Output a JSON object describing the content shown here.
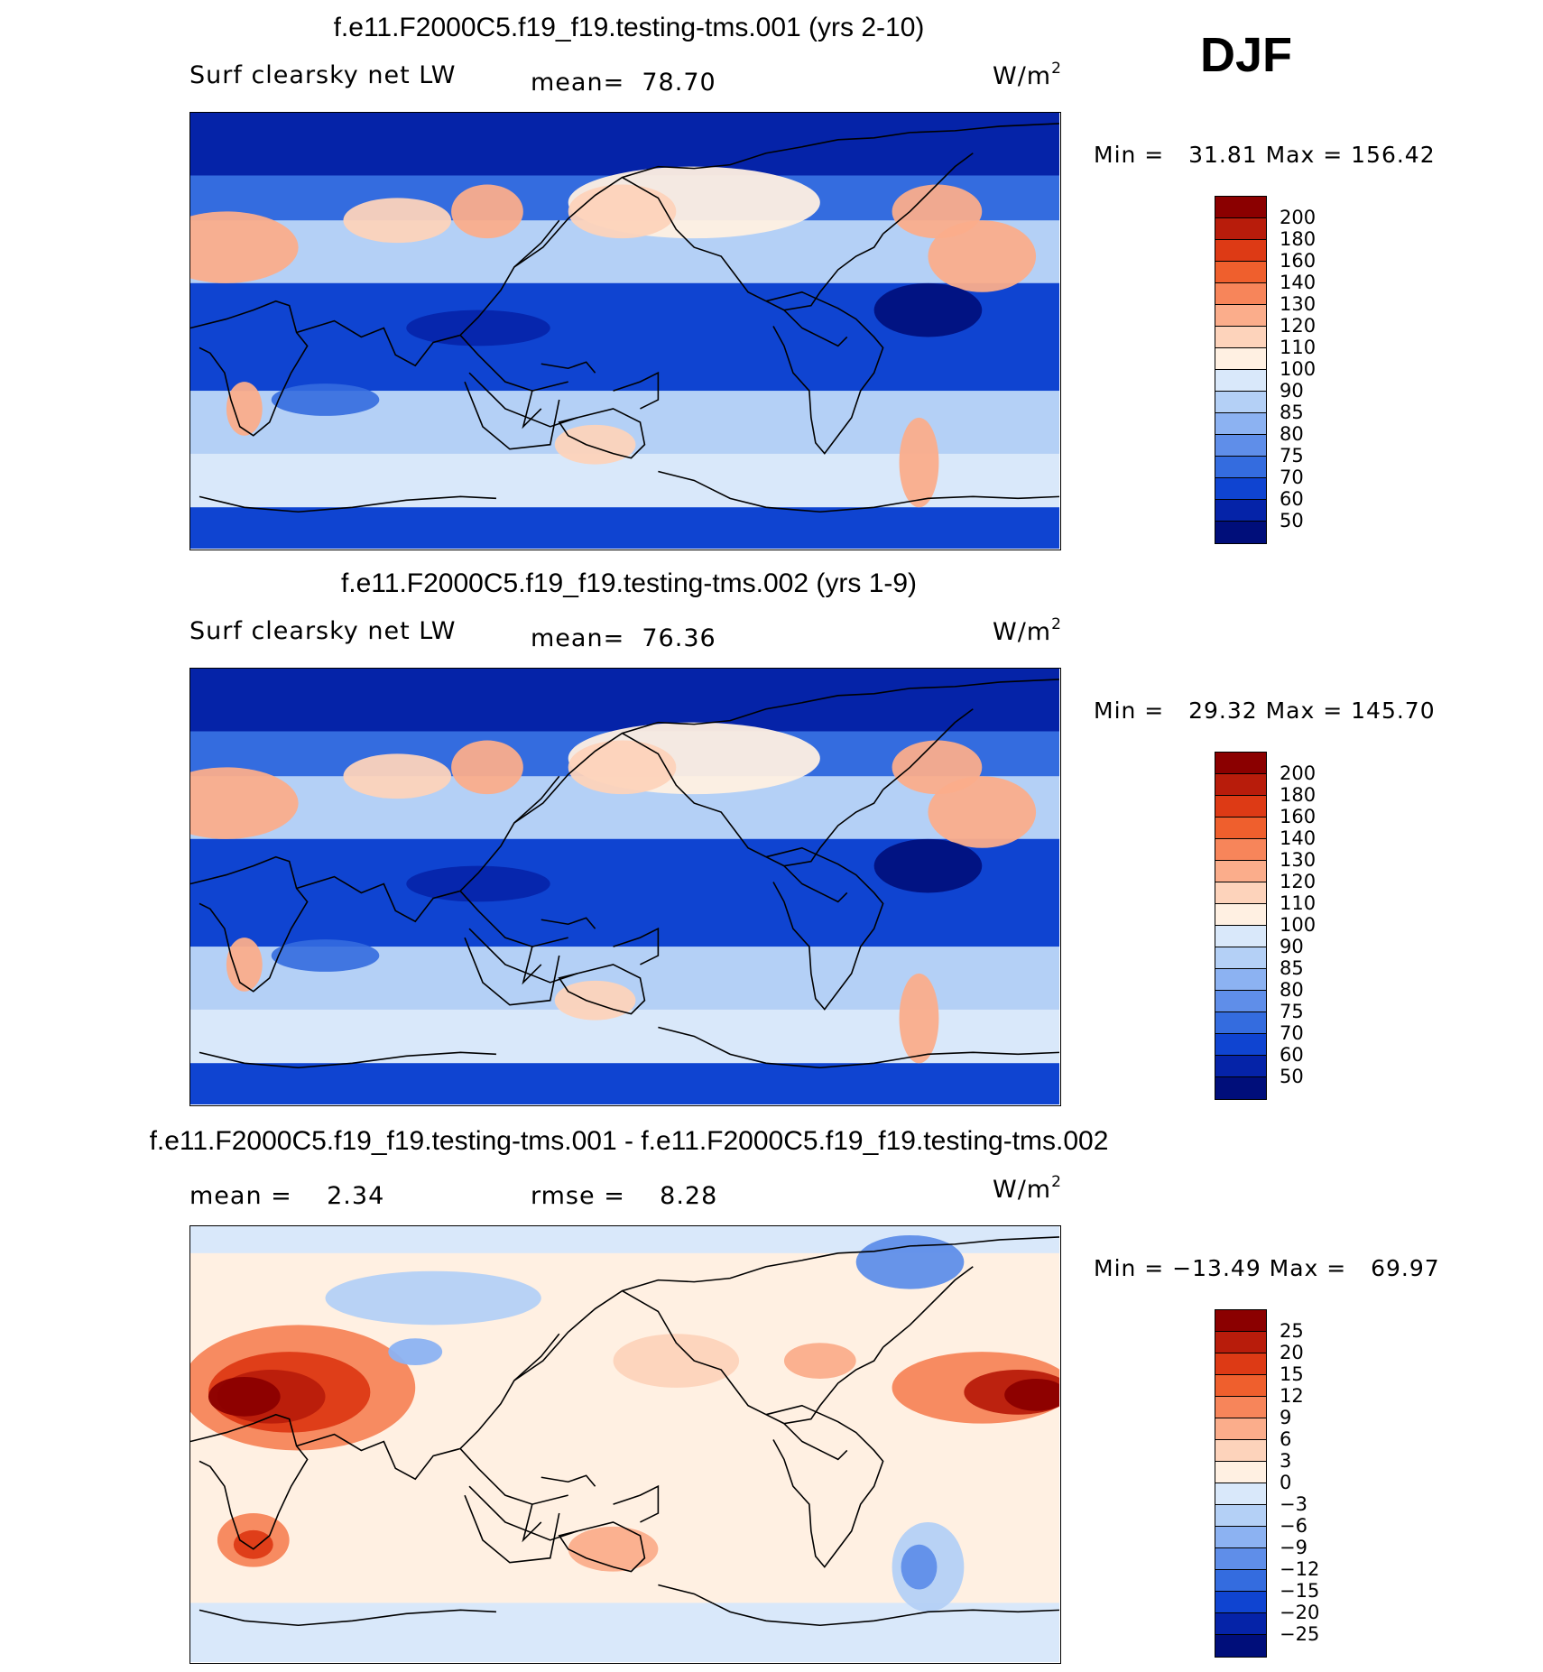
{
  "season": "DJF",
  "panels": [
    {
      "title": "f.e11.F2000C5.f19_f19.testing-tms.001 (yrs 2-10)",
      "variable": "Surf clearsky net LW",
      "stat1_label": "mean=",
      "stat1_value": "78.70",
      "stat2_label": "",
      "stat2_value": "",
      "units": "W/m",
      "units_exp": "2",
      "minmax": "Min =   31.81 Max = 156.42",
      "colorbar": {
        "labels": [
          "200",
          "180",
          "160",
          "140",
          "130",
          "120",
          "110",
          "100",
          "90",
          "85",
          "80",
          "75",
          "70",
          "60",
          "50"
        ],
        "colors": [
          "#8b0000",
          "#b81c0b",
          "#dd3a15",
          "#ef5f2d",
          "#f7855a",
          "#fbad8b",
          "#fdd3bb",
          "#fff0e2",
          "#d9e8fa",
          "#b4d0f6",
          "#8cb2f2",
          "#5f8ee9",
          "#346cdf",
          "#0f44d1",
          "#0523a8",
          "#000e7a"
        ]
      },
      "field": "abs"
    },
    {
      "title": "f.e11.F2000C5.f19_f19.testing-tms.002 (yrs 1-9)",
      "variable": "Surf clearsky net LW",
      "stat1_label": "mean=",
      "stat1_value": "76.36",
      "stat2_label": "",
      "stat2_value": "",
      "units": "W/m",
      "units_exp": "2",
      "minmax": "Min =   29.32 Max = 145.70",
      "colorbar": {
        "labels": [
          "200",
          "180",
          "160",
          "140",
          "130",
          "120",
          "110",
          "100",
          "90",
          "85",
          "80",
          "75",
          "70",
          "60",
          "50"
        ],
        "colors": [
          "#8b0000",
          "#b81c0b",
          "#dd3a15",
          "#ef5f2d",
          "#f7855a",
          "#fbad8b",
          "#fdd3bb",
          "#fff0e2",
          "#d9e8fa",
          "#b4d0f6",
          "#8cb2f2",
          "#5f8ee9",
          "#346cdf",
          "#0f44d1",
          "#0523a8",
          "#000e7a"
        ]
      },
      "field": "abs"
    },
    {
      "title": "f.e11.F2000C5.f19_f19.testing-tms.001 - f.e11.F2000C5.f19_f19.testing-tms.002",
      "variable": "",
      "stat1_label": "mean =",
      "stat1_value": "2.34",
      "stat2_label": "rmse =",
      "stat2_value": "8.28",
      "units": "W/m",
      "units_exp": "2",
      "minmax": "Min = −13.49 Max =   69.97",
      "colorbar": {
        "labels": [
          "25",
          "20",
          "15",
          "12",
          "9",
          "6",
          "3",
          "0",
          "−3",
          "−6",
          "−9",
          "−12",
          "−15",
          "−20",
          "−25"
        ],
        "colors": [
          "#8b0000",
          "#b81c0b",
          "#dd3a15",
          "#ef5f2d",
          "#f7855a",
          "#fbad8b",
          "#fdd3bb",
          "#fff0e2",
          "#d9e8fa",
          "#b4d0f6",
          "#8cb2f2",
          "#5f8ee9",
          "#346cdf",
          "#0f44d1",
          "#0523a8",
          "#000e7a"
        ]
      },
      "field": "diff"
    }
  ]
}
